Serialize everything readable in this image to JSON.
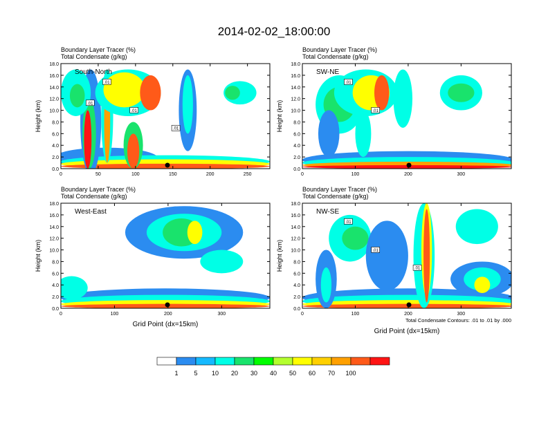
{
  "main_title": "2014-02-02_18:00:00",
  "colorbar": {
    "colors": [
      "#ffffff",
      "#2b8cf0",
      "#15b9ff",
      "#00ffe6",
      "#19e36c",
      "#00ff00",
      "#b4ff2e",
      "#ffff00",
      "#ffd000",
      "#ffa000",
      "#ff5a19",
      "#ff1414"
    ],
    "labels": [
      "1",
      "5",
      "10",
      "20",
      "30",
      "40",
      "50",
      "60",
      "70",
      "100"
    ]
  },
  "colors": {
    "low_blue": "#2b8cf0",
    "cyan": "#15b9ff",
    "aqua": "#00ffe6",
    "green": "#19e36c",
    "lime": "#00ff00",
    "yellow_green": "#b4ff2e",
    "yellow": "#ffff00",
    "gold": "#ffd000",
    "orange": "#ffa000",
    "orange_red": "#ff5a19",
    "red": "#ff1414"
  },
  "chart_data": [
    {
      "type": "heatmap",
      "panel_label": "South-North",
      "title_line1": "Boundary Layer Tracer   (%)",
      "title_line2": "Total Condensate   (g/kg)",
      "ylabel": "Height (km)",
      "xlabel": "",
      "xlim": [
        0,
        280
      ],
      "ylim": [
        0,
        18
      ],
      "xticks": [
        "0",
        "50",
        "100",
        "150",
        "200",
        "250"
      ],
      "yticks": [
        "0.0",
        "2.0",
        "4.0",
        "6.0",
        "8.0",
        "10.0",
        "12.0",
        "14.0",
        "16.0",
        "18.0"
      ],
      "contour_labels": [
        ".01",
        ".01",
        ".01",
        ".01"
      ],
      "footnote": ""
    },
    {
      "type": "heatmap",
      "panel_label": "SW-NE",
      "title_line1": "Boundary Layer Tracer   (%)",
      "title_line2": "Total Condensate   (g/kg)",
      "ylabel": "Height (km)",
      "xlabel": "",
      "xlim": [
        0,
        395
      ],
      "ylim": [
        0,
        18
      ],
      "xticks": [
        "0",
        "100",
        "200",
        "300"
      ],
      "yticks": [
        "0.0",
        "2.0",
        "4.0",
        "6.0",
        "8.0",
        "10.0",
        "12.0",
        "14.0",
        "16.0",
        "18.0"
      ],
      "contour_labels": [
        ".01",
        ".01"
      ],
      "footnote": ""
    },
    {
      "type": "heatmap",
      "panel_label": "West-East",
      "title_line1": "Boundary Layer Tracer   (%)",
      "title_line2": "Total Condensate   (g/kg)",
      "ylabel": "Height (km)",
      "xlabel": "Grid Point (dx=15km)",
      "xlim": [
        0,
        390
      ],
      "ylim": [
        0,
        18
      ],
      "xticks": [
        "0",
        "100",
        "200",
        "300"
      ],
      "yticks": [
        "0.0",
        "2.0",
        "4.0",
        "6.0",
        "8.0",
        "10.0",
        "12.0",
        "14.0",
        "16.0",
        "18.0"
      ],
      "contour_labels": [],
      "footnote": ""
    },
    {
      "type": "heatmap",
      "panel_label": "NW-SE",
      "title_line1": "Boundary Layer Tracer   (%)",
      "title_line2": "Total Condensate   (g/kg)",
      "ylabel": "Height (km)",
      "xlabel": "Grid Point (dx=15km)",
      "xlim": [
        0,
        395
      ],
      "ylim": [
        0,
        18
      ],
      "xticks": [
        "0",
        "100",
        "200",
        "300"
      ],
      "yticks": [
        "0.0",
        "2.0",
        "4.0",
        "6.0",
        "8.0",
        "10.0",
        "12.0",
        "14.0",
        "16.0",
        "18.0"
      ],
      "contour_labels": [
        ".01",
        ".01",
        ".01"
      ],
      "footnote": "Total Condensate Contours: .01 to .01 by .000"
    }
  ]
}
